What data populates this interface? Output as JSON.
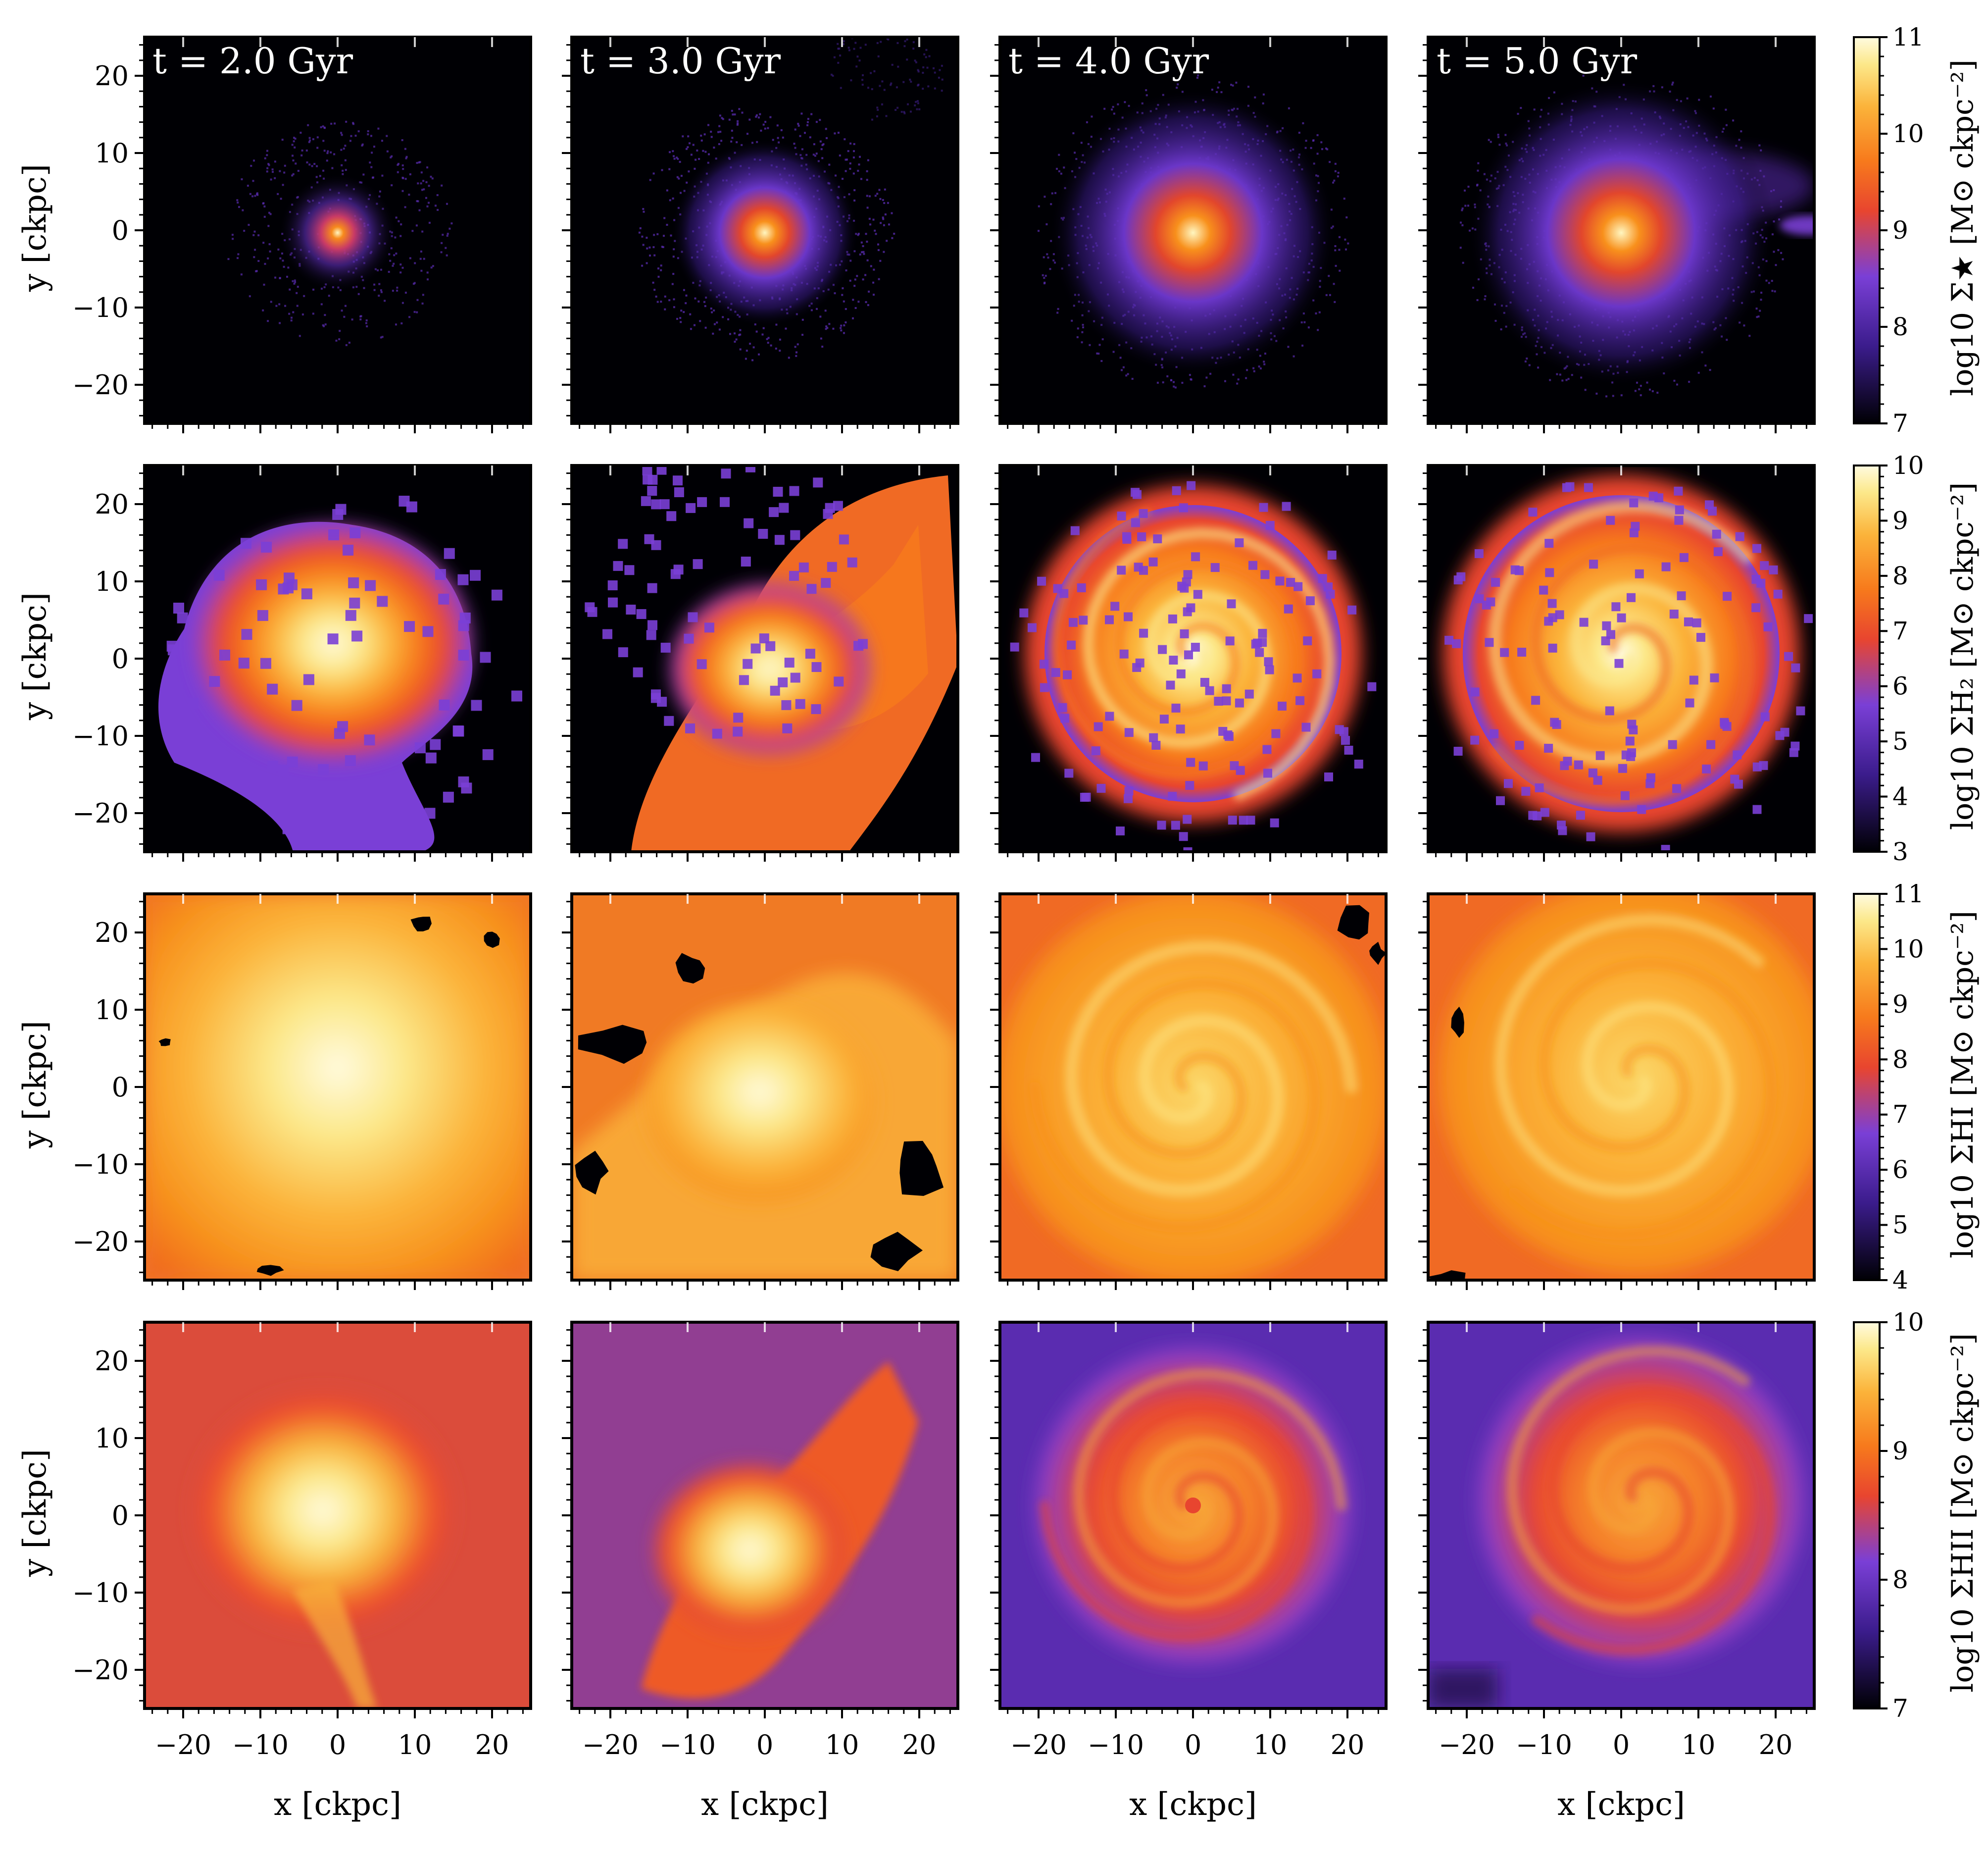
{
  "chart_data": {
    "type": "heatmap",
    "layout": "4 rows x 4 columns",
    "columns": [
      {
        "label": "t = 2.0 Gyr"
      },
      {
        "label": "t = 3.0 Gyr"
      },
      {
        "label": "t = 4.0 Gyr"
      },
      {
        "label": "t = 5.0 Gyr"
      }
    ],
    "x_axis": {
      "label": "x [ckpc]",
      "range": [
        -25,
        25
      ],
      "ticks": [
        "−20",
        "−10",
        "0",
        "10",
        "20"
      ],
      "tick_values": [
        -20,
        -10,
        0,
        10,
        20
      ]
    },
    "y_axis": {
      "label": "y [ckpc]",
      "range": [
        -25,
        25
      ],
      "ticks": [
        "20",
        "10",
        "0",
        "−10",
        "−20"
      ],
      "tick_values": [
        20,
        10,
        0,
        -10,
        -20
      ]
    },
    "rows": [
      {
        "quantity": "stellar surface density",
        "colorbar_label": "log10 Σ★ [M⊙ ckpc⁻²]",
        "colorbar_range": [
          7,
          11
        ],
        "colorbar_ticks": [
          "7",
          "8",
          "9",
          "10",
          "11"
        ],
        "colorbar_tick_values": [
          7,
          8,
          9,
          10,
          11
        ]
      },
      {
        "quantity": "H2 surface density",
        "colorbar_label": "log10 ΣH₂ [M⊙ ckpc⁻²]",
        "colorbar_range": [
          3,
          10
        ],
        "colorbar_ticks": [
          "3",
          "4",
          "5",
          "6",
          "7",
          "8",
          "9",
          "10"
        ],
        "colorbar_tick_values": [
          3,
          4,
          5,
          6,
          7,
          8,
          9,
          10
        ]
      },
      {
        "quantity": "HI surface density",
        "colorbar_label": "log10 ΣHI [M⊙ ckpc⁻²]",
        "colorbar_range": [
          4,
          11
        ],
        "colorbar_ticks": [
          "4",
          "5",
          "6",
          "7",
          "8",
          "9",
          "10",
          "11"
        ],
        "colorbar_tick_values": [
          4,
          5,
          6,
          7,
          8,
          9,
          10,
          11
        ]
      },
      {
        "quantity": "HII surface density",
        "colorbar_label": "log10 ΣHII [M⊙ ckpc⁻²]",
        "colorbar_range": [
          7,
          10
        ],
        "colorbar_ticks": [
          "7",
          "8",
          "9",
          "10"
        ],
        "colorbar_tick_values": [
          7,
          8,
          9,
          10
        ]
      }
    ],
    "colormap": [
      "#000004",
      "#3b1c8c",
      "#7a3fd6",
      "#e8452f",
      "#f77a1c",
      "#fbb33a",
      "#fce88a",
      "#fffbe0"
    ]
  }
}
